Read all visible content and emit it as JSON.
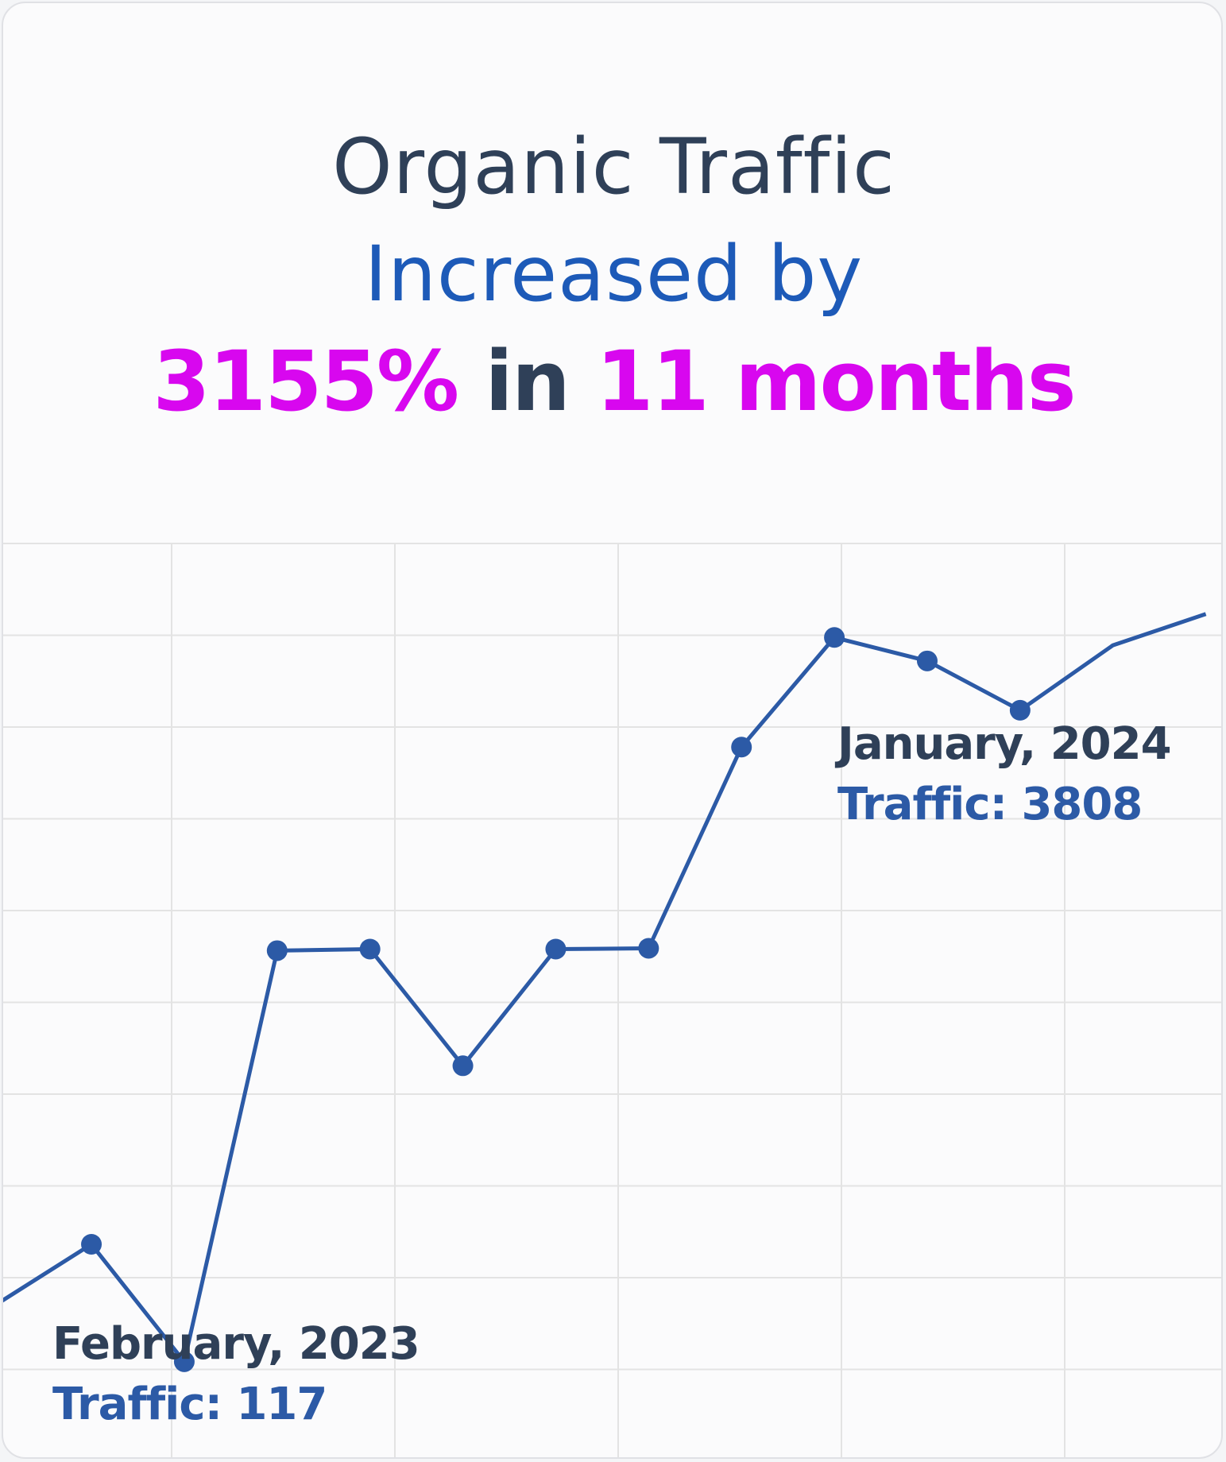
{
  "headline": {
    "line1": "Organic Traffic",
    "line2": "Increased by",
    "line3_pct": "3155%",
    "line3_in": " in ",
    "line3_period": "11 months"
  },
  "annotations": {
    "start": {
      "date": "February, 2023",
      "traffic": "Traffic: 117"
    },
    "end": {
      "date": "January, 2024",
      "traffic": "Traffic: 3808"
    }
  },
  "colors": {
    "line": "#2c5aa6",
    "grid": "#e3e3e3",
    "highlight": "#d807ef",
    "dark": "#2f4058",
    "blue_text": "#1d5ab8"
  },
  "chart_data": {
    "type": "line",
    "x": [
      0,
      1,
      2,
      3,
      4,
      5,
      6,
      7,
      8,
      9,
      10,
      11,
      12,
      13
    ],
    "series": [
      {
        "values": [
          9,
          16.5,
          1.5,
          54,
          54.2,
          39.3,
          54.2,
          54.3,
          80,
          94,
          91,
          84.7,
          93,
          97
        ],
        "markers": [
          false,
          true,
          true,
          true,
          true,
          true,
          true,
          true,
          true,
          true,
          true,
          true,
          false,
          false
        ]
      }
    ],
    "xlim": [
      0.05,
      13.2
    ],
    "ylim": [
      -11,
      106
    ],
    "grid": true,
    "gridlines_x": 6,
    "gridlines_y": 10
  }
}
